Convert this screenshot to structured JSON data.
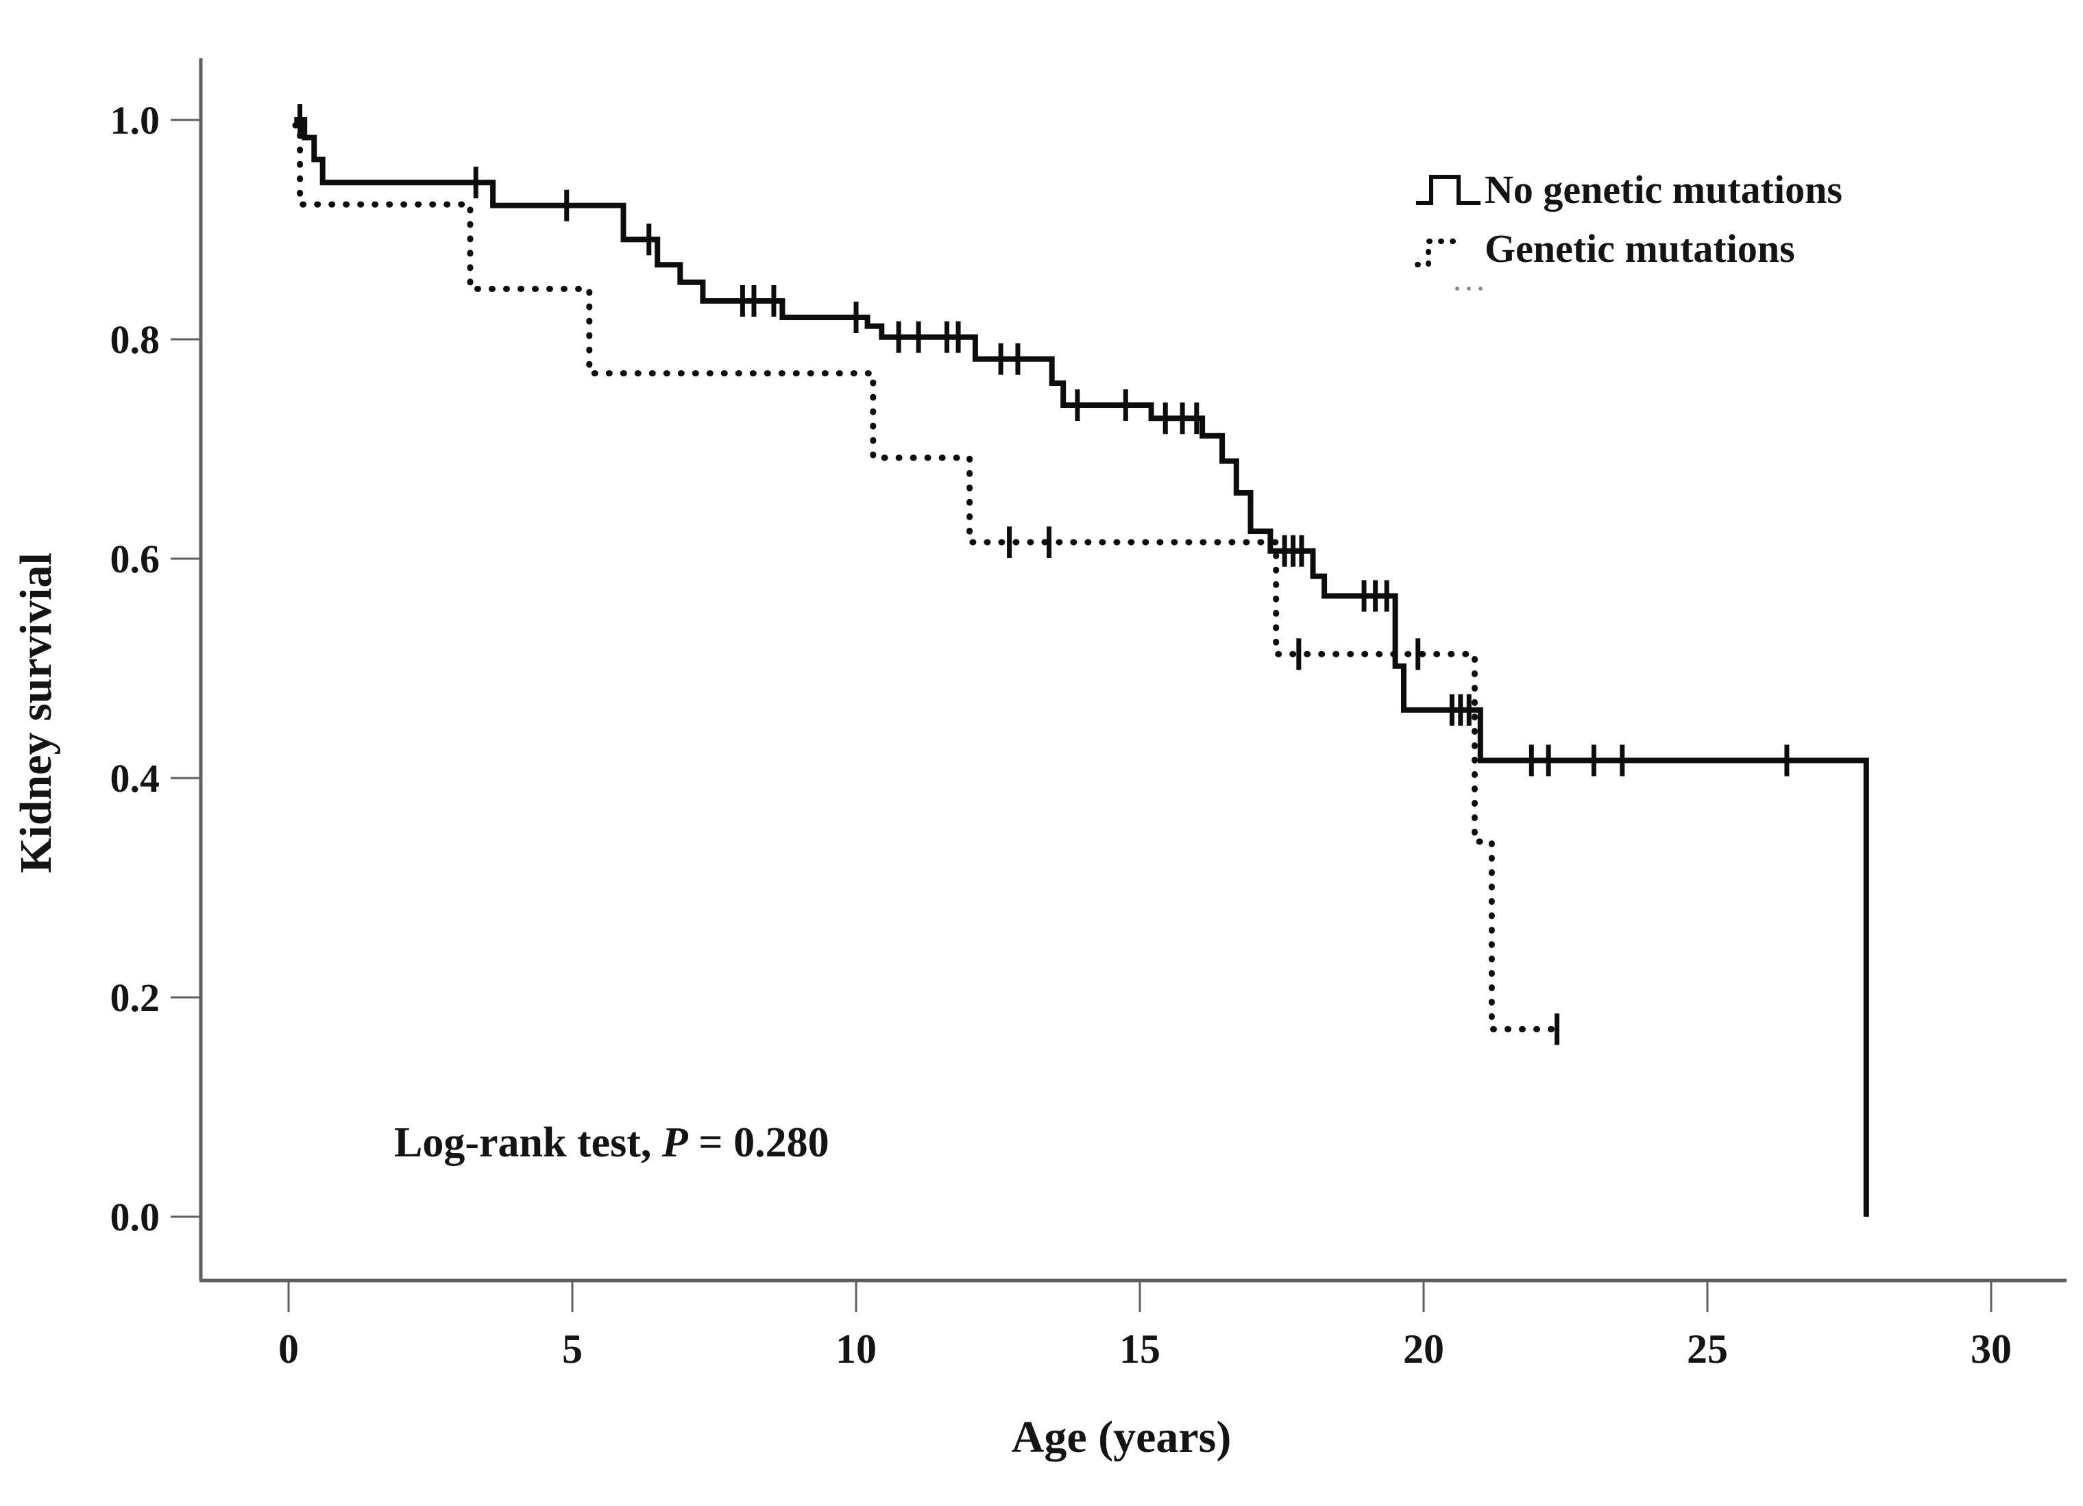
{
  "figure": {
    "background": "#ffffff"
  },
  "colors": {
    "curve": "#0d0d0d",
    "axis": "#5f5f5f",
    "text": "#141414"
  },
  "chart_data": {
    "type": "line",
    "subtype": "kaplan-meier-step",
    "title": "",
    "xlabel": "Age (years)",
    "ylabel": "Kidney survivial",
    "xlim": [
      -1.55,
      31.7
    ],
    "ylim": [
      -0.06,
      1.06
    ],
    "grid": false,
    "legend_position": "top-right",
    "x_ticks": {
      "values": [
        0,
        5,
        10,
        15,
        20,
        25,
        30
      ],
      "labels": [
        "0",
        "5",
        "10",
        "15",
        "20",
        "25",
        "30"
      ]
    },
    "y_ticks": {
      "values": [
        1.0,
        0.8,
        0.6,
        0.4,
        0.2,
        0.0
      ],
      "labels": [
        "1.0",
        "0.8",
        "0.6",
        "0.4",
        "0.2",
        "0.0"
      ]
    },
    "series": [
      {
        "name": "No genetic mutations",
        "line_style": "solid",
        "color": "#0d0d0d",
        "steps": [
          [
            0.1,
            1.0
          ],
          [
            0.28,
            0.984
          ],
          [
            0.45,
            0.964
          ],
          [
            0.6,
            0.943
          ],
          [
            3.6,
            0.922
          ],
          [
            5.9,
            0.891
          ],
          [
            6.5,
            0.868
          ],
          [
            6.9,
            0.852
          ],
          [
            7.3,
            0.835
          ],
          [
            8.7,
            0.82
          ],
          [
            10.2,
            0.812
          ],
          [
            10.45,
            0.802
          ],
          [
            12.1,
            0.782
          ],
          [
            13.45,
            0.76
          ],
          [
            13.65,
            0.74
          ],
          [
            15.2,
            0.728
          ],
          [
            16.1,
            0.712
          ],
          [
            16.45,
            0.689
          ],
          [
            16.7,
            0.66
          ],
          [
            16.95,
            0.625
          ],
          [
            17.3,
            0.607
          ],
          [
            18.05,
            0.584
          ],
          [
            18.25,
            0.566
          ],
          [
            19.5,
            0.502
          ],
          [
            19.65,
            0.462
          ],
          [
            21.0,
            0.416
          ],
          [
            27.8,
            0.0
          ]
        ],
        "censor_marks": [
          [
            0.2,
            1.0
          ],
          [
            3.3,
            0.943
          ],
          [
            4.9,
            0.922
          ],
          [
            6.35,
            0.891
          ],
          [
            8.0,
            0.835
          ],
          [
            8.2,
            0.835
          ],
          [
            8.55,
            0.835
          ],
          [
            10.0,
            0.82
          ],
          [
            10.75,
            0.802
          ],
          [
            11.1,
            0.802
          ],
          [
            11.6,
            0.802
          ],
          [
            11.8,
            0.802
          ],
          [
            12.55,
            0.782
          ],
          [
            12.85,
            0.782
          ],
          [
            13.9,
            0.74
          ],
          [
            14.75,
            0.74
          ],
          [
            15.45,
            0.728
          ],
          [
            15.75,
            0.728
          ],
          [
            16.0,
            0.728
          ],
          [
            17.55,
            0.607
          ],
          [
            17.7,
            0.607
          ],
          [
            17.85,
            0.607
          ],
          [
            18.95,
            0.566
          ],
          [
            19.15,
            0.566
          ],
          [
            19.35,
            0.566
          ],
          [
            20.5,
            0.462
          ],
          [
            20.65,
            0.462
          ],
          [
            20.8,
            0.462
          ],
          [
            21.9,
            0.416
          ],
          [
            22.2,
            0.416
          ],
          [
            23.0,
            0.416
          ],
          [
            23.5,
            0.416
          ],
          [
            26.4,
            0.416
          ]
        ]
      },
      {
        "name": "Genetic mutations",
        "line_style": "dotted",
        "color": "#0d0d0d",
        "steps": [
          [
            0.12,
            0.995
          ],
          [
            0.2,
            0.923
          ],
          [
            3.2,
            0.846
          ],
          [
            5.3,
            0.769
          ],
          [
            10.3,
            0.692
          ],
          [
            12.0,
            0.615
          ],
          [
            17.4,
            0.513
          ],
          [
            20.9,
            0.342
          ],
          [
            21.2,
            0.171
          ],
          [
            22.45,
            0.171
          ]
        ],
        "censor_marks": [
          [
            12.7,
            0.615
          ],
          [
            13.4,
            0.615
          ],
          [
            17.8,
            0.513
          ],
          [
            19.9,
            0.513
          ],
          [
            22.35,
            0.171
          ]
        ]
      }
    ],
    "annotation": {
      "prefix": "Log-rank test, ",
      "stat_symbol": "P",
      "suffix": " = 0.280"
    }
  },
  "legend": {
    "items": [
      {
        "label": "No genetic mutations",
        "line_style": "solid"
      },
      {
        "label": "Genetic mutations",
        "line_style": "dotted"
      }
    ],
    "stray_marks": "···"
  }
}
